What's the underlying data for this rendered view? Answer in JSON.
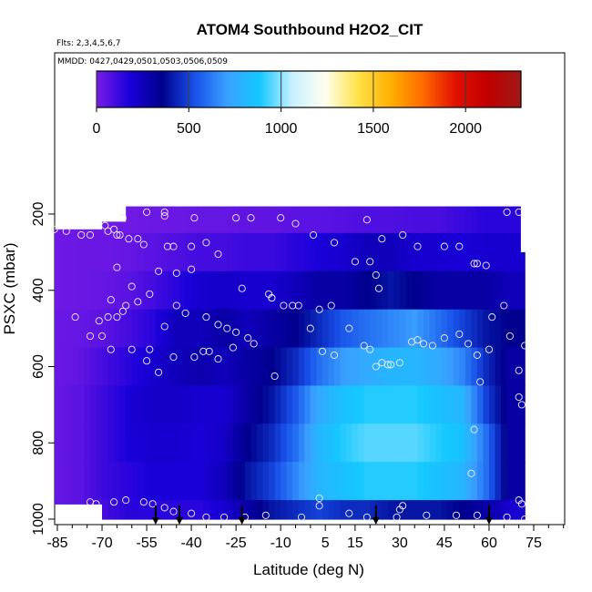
{
  "chart_data": {
    "type": "heatmap",
    "title": "ATOM4 Southbound H2O2_CIT",
    "flights_note": "Flts: 2,3,4,5,6,7",
    "dates_note": "MMDD: 0427,0429,0501,0503,0506,0509",
    "xlabel": "Latitude (deg N)",
    "ylabel": "PSXC (mbar)",
    "x_ticks": [
      -85,
      -70,
      -55,
      -40,
      -25,
      -10,
      5,
      15,
      30,
      45,
      60,
      75
    ],
    "xlim": [
      -85,
      75
    ],
    "y_ticks": [
      200,
      400,
      600,
      800,
      1000
    ],
    "ylim": [
      1000,
      50
    ],
    "y_reversed": true,
    "colorbar": {
      "ticks": [
        0,
        500,
        1000,
        1500,
        2000
      ],
      "range": [
        0,
        2300
      ],
      "colors": [
        "#7a1ce6",
        "#1a00d9",
        "#00008c",
        "#1850e8",
        "#3aa0ff",
        "#14c8ff",
        "#c8f0ff",
        "#fffff0",
        "#ffe24a",
        "#ffb000",
        "#ff6a00",
        "#e01000",
        "#c00000",
        "#a01818"
      ]
    },
    "curtain_columns": [
      {
        "lat_min": -86,
        "lat_max": -70,
        "p_min": 240,
        "p_max": 960
      },
      {
        "lat_min": -70,
        "lat_max": -62,
        "p_min": 220,
        "p_max": 1000
      },
      {
        "lat_min": -62,
        "lat_max": 70,
        "p_min": 180,
        "p_max": 1000
      },
      {
        "lat_min": 70,
        "lat_max": 72,
        "p_min": 300,
        "p_max": 1000
      }
    ],
    "concentration_grid": {
      "lat_edges": [
        -86,
        -78,
        -70,
        -62,
        -54,
        -46,
        -38,
        -30,
        -22,
        -14,
        -6,
        2,
        10,
        18,
        26,
        34,
        42,
        50,
        58,
        66,
        72
      ],
      "p_levels": [
        200,
        300,
        400,
        500,
        600,
        700,
        800,
        900,
        1000
      ],
      "values": [
        [
          20,
          20,
          20,
          20,
          25,
          30,
          40,
          40,
          50,
          50,
          60,
          60,
          70,
          80,
          80,
          90,
          90,
          120,
          150,
          150
        ],
        [
          20,
          30,
          30,
          40,
          60,
          80,
          100,
          100,
          120,
          120,
          150,
          180,
          200,
          250,
          250,
          200,
          200,
          180,
          200,
          200
        ],
        [
          20,
          30,
          40,
          60,
          100,
          150,
          200,
          220,
          200,
          200,
          250,
          300,
          300,
          350,
          400,
          350,
          300,
          300,
          300,
          250
        ],
        [
          30,
          40,
          60,
          100,
          150,
          250,
          250,
          300,
          250,
          300,
          350,
          450,
          550,
          600,
          650,
          700,
          600,
          500,
          400,
          350
        ],
        [
          30,
          50,
          100,
          150,
          200,
          250,
          280,
          250,
          300,
          350,
          450,
          600,
          700,
          750,
          800,
          800,
          750,
          650,
          450,
          300
        ],
        [
          40,
          60,
          120,
          180,
          220,
          220,
          200,
          200,
          300,
          400,
          550,
          750,
          850,
          900,
          900,
          900,
          850,
          800,
          500,
          300
        ],
        [
          40,
          60,
          120,
          180,
          200,
          200,
          180,
          220,
          350,
          450,
          600,
          800,
          900,
          950,
          950,
          950,
          900,
          850,
          600,
          300
        ],
        [
          40,
          60,
          120,
          150,
          180,
          180,
          180,
          250,
          400,
          500,
          650,
          800,
          850,
          900,
          900,
          900,
          850,
          800,
          600,
          300
        ],
        [
          40,
          60,
          100,
          150,
          150,
          150,
          150,
          200,
          300,
          400,
          450,
          500,
          450,
          450,
          400,
          400,
          400,
          350,
          300,
          200
        ]
      ]
    },
    "observation_points": [
      [
        -55,
        195
      ],
      [
        -49,
        195
      ],
      [
        -49,
        205
      ],
      [
        -39,
        210
      ],
      [
        -35,
        275
      ],
      [
        -31,
        305
      ],
      [
        -25,
        210
      ],
      [
        -20,
        210
      ],
      [
        -10,
        210
      ],
      [
        -5,
        225
      ],
      [
        1,
        255
      ],
      [
        8,
        275
      ],
      [
        19,
        215
      ],
      [
        24,
        265
      ],
      [
        31,
        255
      ],
      [
        36,
        285
      ],
      [
        45,
        285
      ],
      [
        50,
        285
      ],
      [
        55,
        330
      ],
      [
        56,
        330
      ],
      [
        59,
        335
      ],
      [
        66,
        195
      ],
      [
        70,
        195
      ],
      [
        -86,
        240
      ],
      [
        -82,
        245
      ],
      [
        -77,
        255
      ],
      [
        -74,
        255
      ],
      [
        -69,
        230
      ],
      [
        -68,
        245
      ],
      [
        -66,
        240
      ],
      [
        -65,
        255
      ],
      [
        -63,
        210
      ],
      [
        -64,
        255
      ],
      [
        -61,
        265
      ],
      [
        -58,
        265
      ],
      [
        -56,
        280
      ],
      [
        -48,
        285
      ],
      [
        -46,
        285
      ],
      [
        -40,
        285
      ],
      [
        -45,
        355
      ],
      [
        -40,
        345
      ],
      [
        -51,
        350
      ],
      [
        -65,
        340
      ],
      [
        -60,
        390
      ],
      [
        -54,
        410
      ],
      [
        -58,
        430
      ],
      [
        -62,
        440
      ],
      [
        -67,
        425
      ],
      [
        -63,
        455
      ],
      [
        -65,
        470
      ],
      [
        -68,
        470
      ],
      [
        -71,
        480
      ],
      [
        -74,
        520
      ],
      [
        -79,
        470
      ],
      [
        -70,
        520
      ],
      [
        -67,
        555
      ],
      [
        -60,
        555
      ],
      [
        -54,
        555
      ],
      [
        -49,
        495
      ],
      [
        -45,
        440
      ],
      [
        -42,
        460
      ],
      [
        -35,
        470
      ],
      [
        -31,
        490
      ],
      [
        -28,
        500
      ],
      [
        -25,
        510
      ],
      [
        -21,
        525
      ],
      [
        -19,
        540
      ],
      [
        -13,
        420
      ],
      [
        -9,
        440
      ],
      [
        -6,
        440
      ],
      [
        3,
        450
      ],
      [
        7,
        440
      ],
      [
        15,
        325
      ],
      [
        20,
        325
      ],
      [
        22,
        360
      ],
      [
        23,
        395
      ],
      [
        -46,
        575
      ],
      [
        -39,
        575
      ],
      [
        -34,
        560
      ],
      [
        -26,
        550
      ],
      [
        -23,
        395
      ],
      [
        -14,
        410
      ],
      [
        -13,
        420
      ],
      [
        -4,
        440
      ],
      [
        0,
        500
      ],
      [
        4,
        560
      ],
      [
        8,
        570
      ],
      [
        13,
        500
      ],
      [
        18,
        545
      ],
      [
        20,
        555
      ],
      [
        24,
        590
      ],
      [
        27,
        595
      ],
      [
        30,
        590
      ],
      [
        34,
        535
      ],
      [
        38,
        540
      ],
      [
        41,
        545
      ],
      [
        45,
        525
      ],
      [
        53,
        540
      ],
      [
        56,
        570
      ],
      [
        60,
        555
      ],
      [
        61,
        470
      ],
      [
        65,
        440
      ],
      [
        67,
        520
      ],
      [
        70,
        610
      ],
      [
        72,
        545
      ],
      [
        -55,
        585
      ],
      [
        -51,
        615
      ],
      [
        -36,
        560
      ],
      [
        -31,
        580
      ],
      [
        -12,
        625
      ],
      [
        22,
        600
      ],
      [
        26,
        595
      ],
      [
        36,
        530
      ],
      [
        50,
        515
      ],
      [
        57,
        640
      ],
      [
        70,
        680
      ],
      [
        71,
        700
      ],
      [
        55,
        765
      ],
      [
        54,
        880
      ],
      [
        -74,
        955
      ],
      [
        -72,
        960
      ],
      [
        -66,
        955
      ],
      [
        -62,
        950
      ],
      [
        -56,
        955
      ],
      [
        -53,
        960
      ],
      [
        -49,
        970
      ],
      [
        -46,
        980
      ],
      [
        -40,
        985
      ],
      [
        -35,
        995
      ],
      [
        -29,
        995
      ],
      [
        -22,
        995
      ],
      [
        -15,
        990
      ],
      [
        -3,
        995
      ],
      [
        3,
        945
      ],
      [
        3,
        965
      ],
      [
        13,
        985
      ],
      [
        19,
        995
      ],
      [
        29,
        995
      ],
      [
        31,
        965
      ],
      [
        30,
        975
      ],
      [
        39,
        990
      ],
      [
        49,
        990
      ],
      [
        56,
        990
      ],
      [
        66,
        995
      ],
      [
        70,
        950
      ],
      [
        71,
        960
      ],
      [
        72,
        1000
      ]
    ],
    "arrow_markers_lat": [
      -52,
      -44,
      -23,
      22,
      60
    ]
  }
}
